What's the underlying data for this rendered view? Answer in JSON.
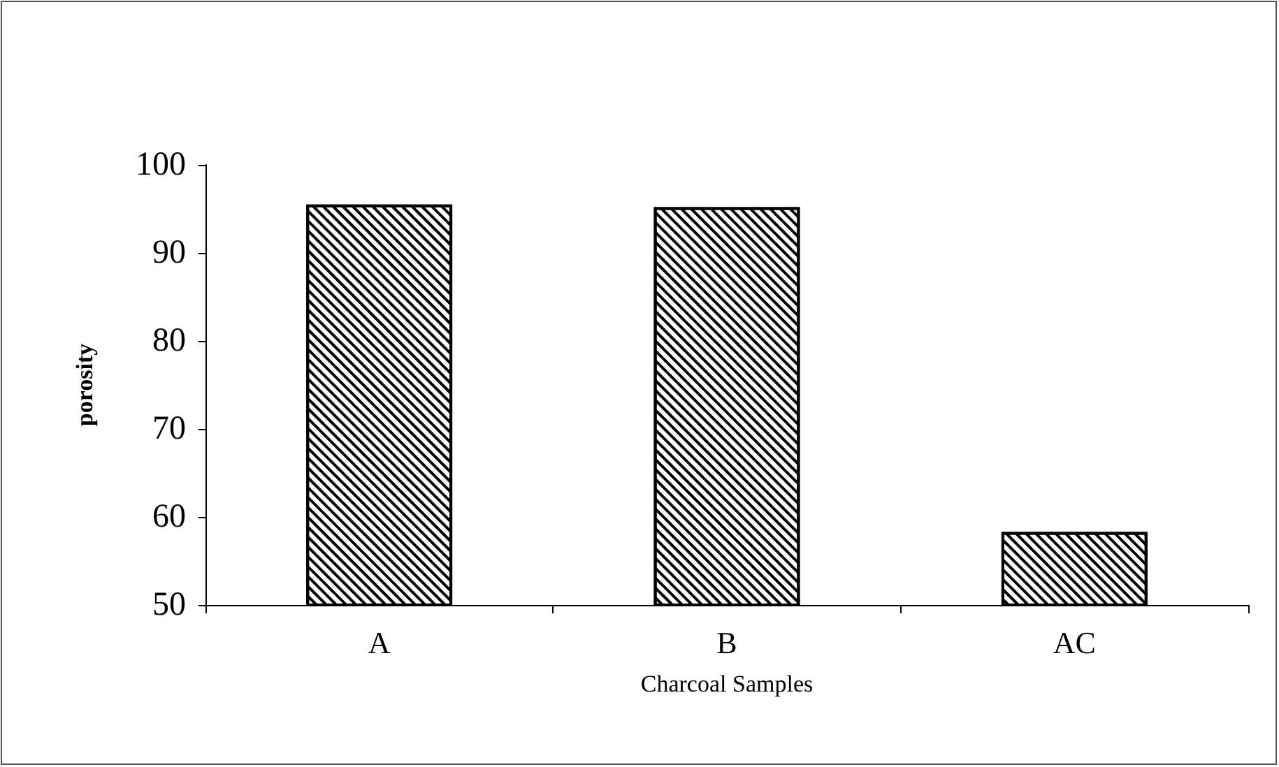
{
  "chart_data": {
    "type": "bar",
    "xlabel": "Charcoal Samples",
    "ylabel": "porosity",
    "categories": [
      "A",
      "B",
      "AC"
    ],
    "values": [
      95.5,
      95.2,
      58.3
    ],
    "color": "#ffffff",
    "ylim": [
      50,
      100
    ],
    "yticks": [
      50,
      60,
      70,
      80,
      90,
      100
    ],
    "grid": false
  }
}
